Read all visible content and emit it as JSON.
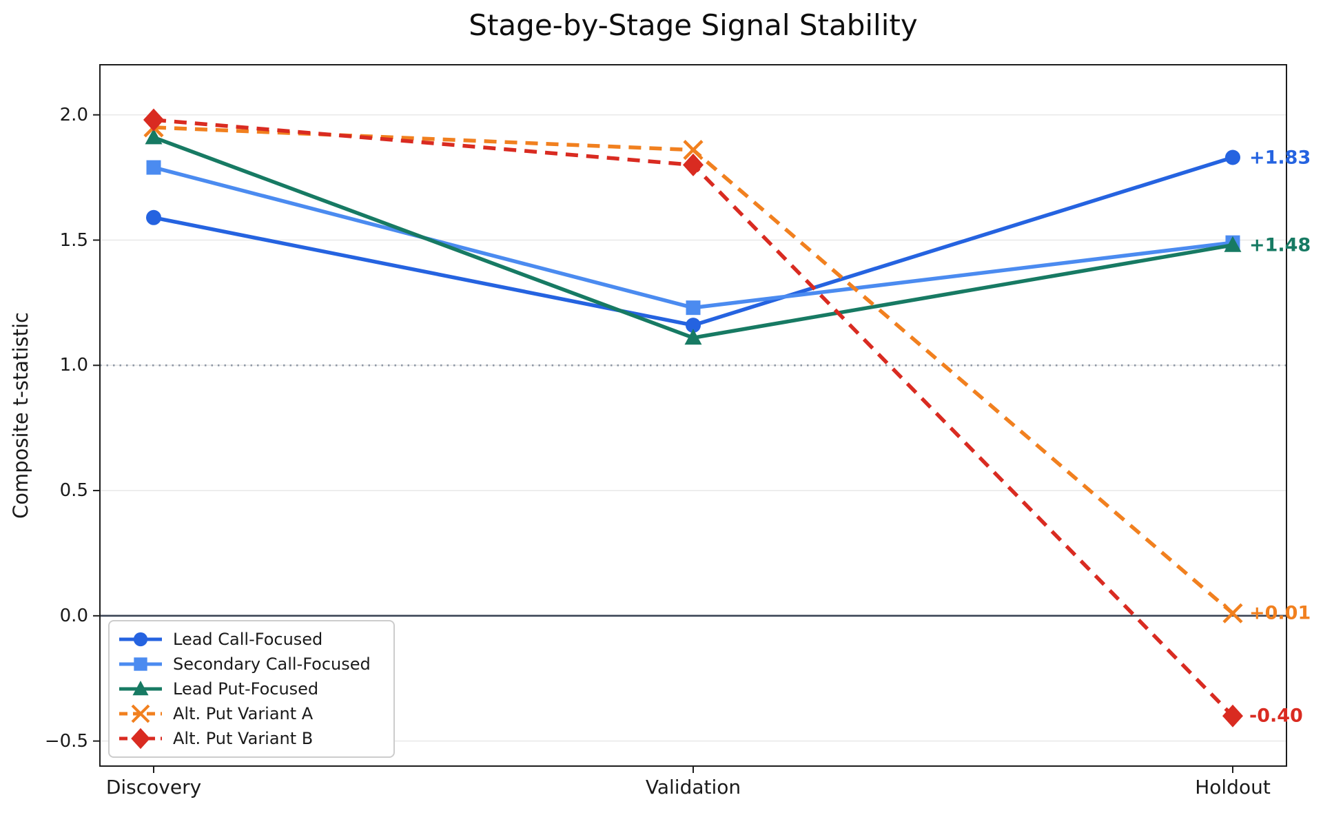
{
  "chart_data": {
    "type": "line",
    "title": "Stage-by-Stage Signal Stability",
    "xlabel": "",
    "ylabel": "Composite t-statistic",
    "categories": [
      "Discovery",
      "Validation",
      "Holdout"
    ],
    "ylim": [
      -0.6,
      2.2
    ],
    "yticks": [
      2.0,
      1.5,
      1.0,
      0.5,
      0.0,
      -0.5
    ],
    "ytick_labels": [
      "2.0",
      "1.5",
      "1.0",
      "0.5",
      "0.0",
      "−0.5"
    ],
    "grid": true,
    "grid_color": "#e8e8e8",
    "spine_color": "#1c1c1c",
    "legend_position": "lower left",
    "reference_lines": [
      {
        "y": 1.0,
        "style": "dotted",
        "color": "#8d96a4"
      },
      {
        "y": 0.0,
        "style": "solid",
        "color": "#3a4354"
      }
    ],
    "series": [
      {
        "name": "Lead Call-Focused",
        "color": "#2563e0",
        "marker": "circle",
        "line": "solid",
        "values": [
          1.59,
          1.16,
          1.83
        ]
      },
      {
        "name": "Secondary Call-Focused",
        "color": "#4b8bf0",
        "marker": "square",
        "line": "solid",
        "values": [
          1.79,
          1.23,
          1.49
        ]
      },
      {
        "name": "Lead Put-Focused",
        "color": "#177a63",
        "marker": "triangle",
        "line": "solid",
        "values": [
          1.91,
          1.11,
          1.48
        ]
      },
      {
        "name": "Alt. Put Variant A",
        "color": "#f1801f",
        "marker": "x",
        "line": "dashed",
        "values": [
          1.95,
          1.86,
          0.01
        ]
      },
      {
        "name": "Alt. Put Variant B",
        "color": "#d92b21",
        "marker": "diamond",
        "line": "dashed",
        "values": [
          1.98,
          1.8,
          -0.4
        ]
      }
    ],
    "end_labels": [
      {
        "text": "+1.83",
        "value": 1.83,
        "color": "#2563e0"
      },
      {
        "text": "+1.48",
        "value": 1.48,
        "color": "#177a63"
      },
      {
        "text": "+0.01",
        "value": 0.01,
        "color": "#f1801f"
      },
      {
        "text": "-0.40",
        "value": -0.4,
        "color": "#d92b21"
      }
    ]
  }
}
